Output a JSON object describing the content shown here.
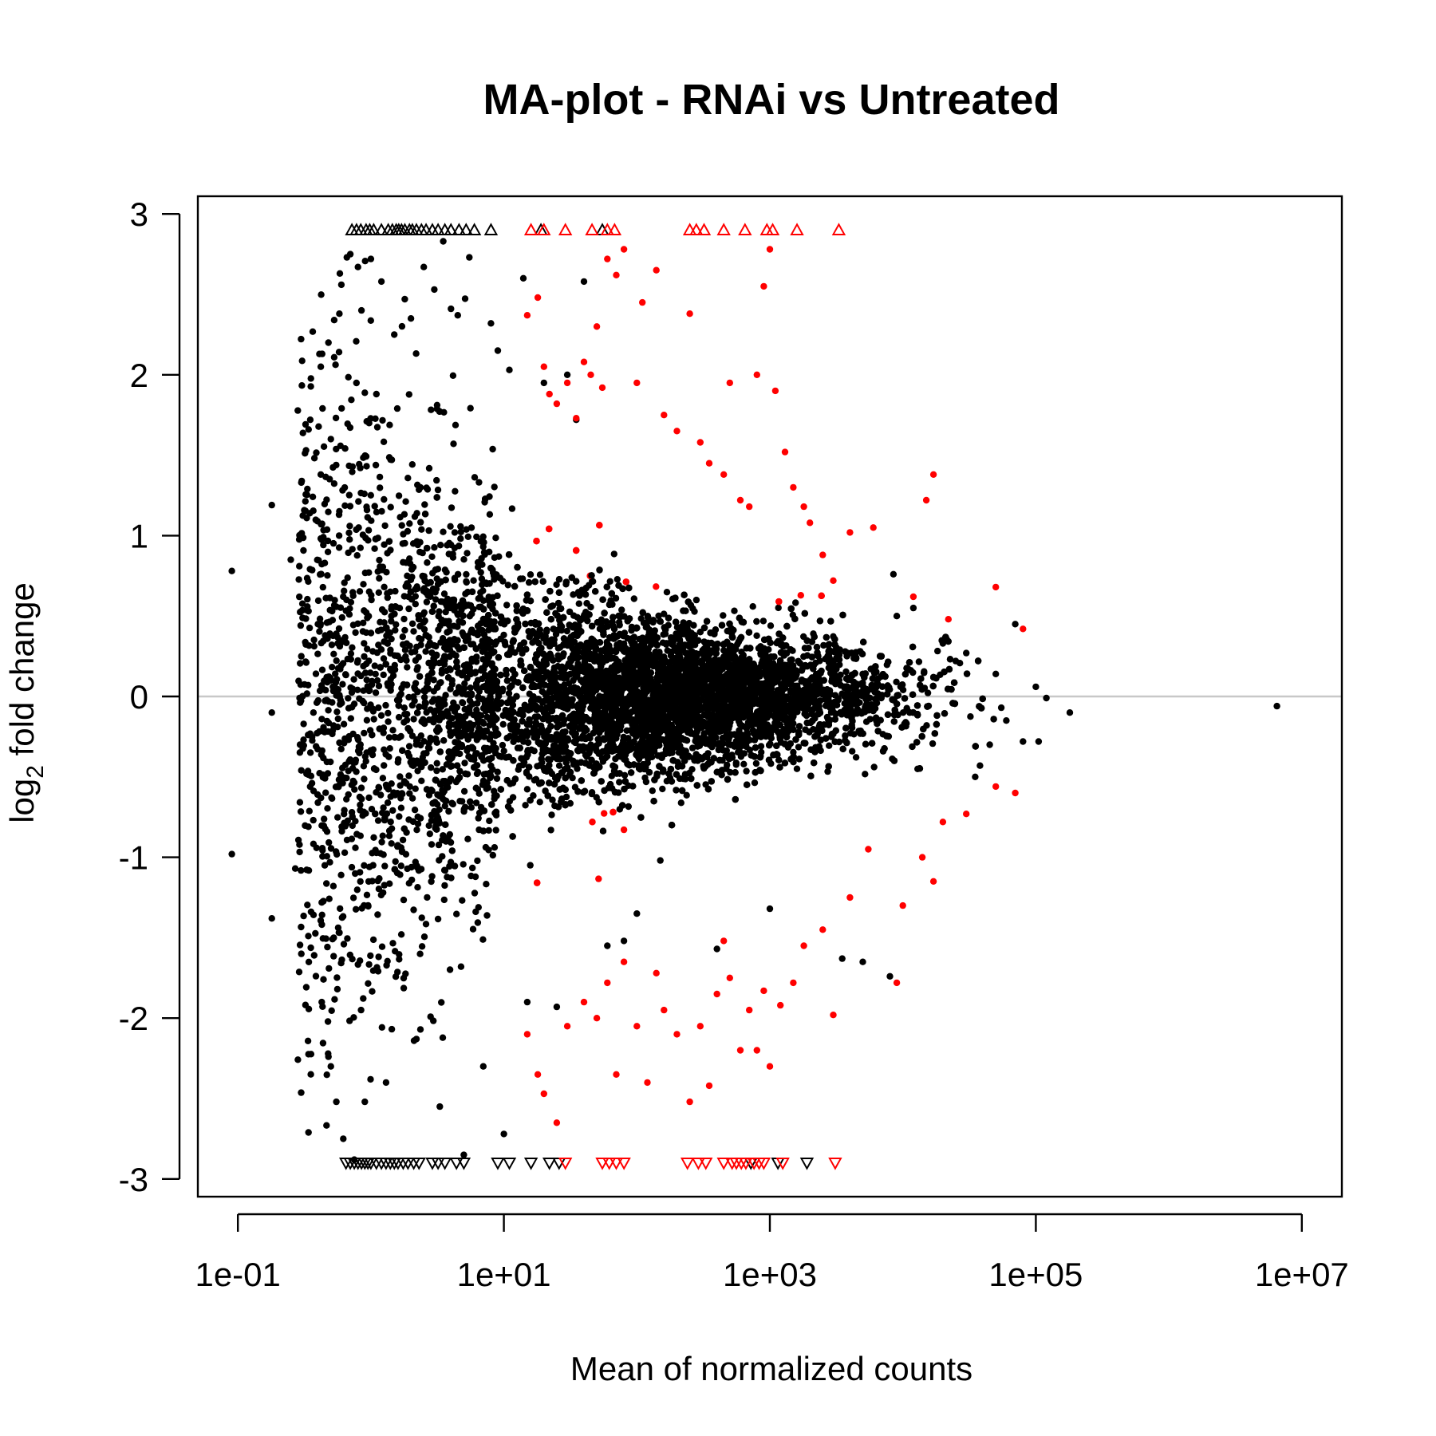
{
  "colors": {
    "significant": "#ff0000",
    "not_significant": "#000000",
    "zero_line": "#c8c8c8",
    "frame": "#000000",
    "background": "#ffffff"
  },
  "chart_data": {
    "type": "scatter",
    "title": "MA-plot - RNAi vs Untreated",
    "xlabel": "Mean of normalized counts",
    "ylabel_main": "log",
    "ylabel_sub": "2",
    "ylabel_rest": " fold change",
    "x_scale": "log10",
    "xlim": [
      0.05,
      20000000.0
    ],
    "ylim": [
      -3.11,
      3.11
    ],
    "clip_at": 2.9,
    "x_ticks": [
      {
        "value": 0.1,
        "label": "1e-01"
      },
      {
        "value": 10,
        "label": "1e+01"
      },
      {
        "value": 1000,
        "label": "1e+03"
      },
      {
        "value": 100000,
        "label": "1e+05"
      },
      {
        "value": 10000000,
        "label": "1e+07"
      }
    ],
    "y_ticks": [
      {
        "value": 3,
        "label": "3"
      },
      {
        "value": 2,
        "label": "2"
      },
      {
        "value": 1,
        "label": "1"
      },
      {
        "value": 0,
        "label": "0"
      },
      {
        "value": -1,
        "label": "-1"
      },
      {
        "value": -2,
        "label": "-2"
      },
      {
        "value": -3,
        "label": "-3"
      }
    ],
    "zero_line": 0,
    "grid": false,
    "legend": "none",
    "series": [
      {
        "color": "#000000",
        "points": [
          [
            0.09,
            0.78
          ],
          [
            0.09,
            -0.98
          ],
          [
            0.18,
            1.19
          ],
          [
            0.18,
            -0.1
          ],
          [
            0.18,
            -1.38
          ],
          [
            0.25,
            0.85
          ],
          [
            0.27,
            -1.07
          ],
          [
            0.3,
            0.25
          ],
          [
            0.3,
            1.33
          ],
          [
            0.3,
            -0.46
          ],
          [
            0.3,
            -1.6
          ],
          [
            0.34,
            1.66
          ],
          [
            0.35,
            1.72
          ],
          [
            0.37,
            -0.1
          ],
          [
            0.4,
            0.45
          ],
          [
            0.4,
            -0.66
          ],
          [
            0.42,
            2.05
          ],
          [
            0.42,
            1.38
          ],
          [
            0.43,
            2.13
          ],
          [
            0.45,
            -1.05
          ],
          [
            0.45,
            0.83
          ],
          [
            0.48,
            2.2
          ],
          [
            0.48,
            -2.24
          ],
          [
            0.5,
            -2.3
          ],
          [
            0.5,
            1.6
          ],
          [
            0.53,
            2.34
          ],
          [
            0.55,
            -2.52
          ],
          [
            0.56,
            -1.82
          ],
          [
            0.58,
            2.38
          ],
          [
            0.6,
            2.56
          ],
          [
            0.62,
            -2.75
          ],
          [
            0.66,
            2.73
          ],
          [
            0.7,
            2.75
          ],
          [
            0.72,
            -0.72
          ],
          [
            0.75,
            -2.88
          ],
          [
            0.8,
            2.67
          ],
          [
            0.85,
            2.4
          ],
          [
            0.9,
            -2.52
          ],
          [
            1.0,
            2.72
          ],
          [
            1.1,
            1.88
          ],
          [
            1.2,
            2.58
          ],
          [
            1.3,
            -2.4
          ],
          [
            1.5,
            2.25
          ],
          [
            1.8,
            2.47
          ],
          [
            2.0,
            2.35
          ],
          [
            2.2,
            -2.13
          ],
          [
            2.5,
            2.67
          ],
          [
            3.0,
            2.53
          ],
          [
            3.3,
            -2.55
          ],
          [
            3.5,
            2.83
          ],
          [
            4.0,
            2.41
          ],
          [
            4.5,
            2.37
          ],
          [
            5.0,
            -2.85
          ],
          [
            5.5,
            2.73
          ],
          [
            7.0,
            -2.3
          ],
          [
            8.0,
            2.32
          ],
          [
            9.0,
            2.15
          ],
          [
            10.0,
            -2.72
          ],
          [
            11.0,
            2.03
          ],
          [
            14.0,
            2.6
          ],
          [
            15.0,
            -1.9
          ],
          [
            20.0,
            1.95
          ],
          [
            25.0,
            -1.93
          ],
          [
            30.0,
            2.0
          ],
          [
            35.0,
            1.72
          ],
          [
            40.0,
            2.58
          ],
          [
            60.0,
            -1.55
          ],
          [
            80.0,
            -1.52
          ],
          [
            100.0,
            -1.35
          ],
          [
            150.0,
            -1.02
          ],
          [
            400.0,
            -1.57
          ],
          [
            1000.0,
            -1.32
          ],
          [
            3500.0,
            -1.63
          ],
          [
            5000.0,
            -1.65
          ],
          [
            8000.0,
            -1.74
          ],
          [
            8500.0,
            0.76
          ],
          [
            9000.0,
            0.5
          ],
          [
            12000.0,
            0.55
          ],
          [
            20000.0,
            0.33
          ],
          [
            25000.0,
            0.22
          ],
          [
            30000.0,
            0.27
          ],
          [
            35000.0,
            -0.5
          ],
          [
            38000.0,
            -0.43
          ],
          [
            45000.0,
            -0.3
          ],
          [
            50000.0,
            0.14
          ],
          [
            55000.0,
            -0.07
          ],
          [
            60000.0,
            -0.15
          ],
          [
            70000.0,
            0.45
          ],
          [
            80000.0,
            -0.28
          ],
          [
            100000.0,
            0.06
          ],
          [
            105000.0,
            -0.28
          ],
          [
            120000.0,
            -0.01
          ],
          [
            180000.0,
            -0.1
          ],
          [
            6500000.0,
            -0.06
          ]
        ]
      },
      {
        "color": "#ff0000",
        "points": [
          [
            15.0,
            2.37
          ],
          [
            18.0,
            2.48
          ],
          [
            20.0,
            2.05
          ],
          [
            22.0,
            1.88
          ],
          [
            25.0,
            1.82
          ],
          [
            30.0,
            1.95
          ],
          [
            35.0,
            1.73
          ],
          [
            40.0,
            2.08
          ],
          [
            45.0,
            2.0
          ],
          [
            50.0,
            2.3
          ],
          [
            55.0,
            1.92
          ],
          [
            60.0,
            2.72
          ],
          [
            70.0,
            2.62
          ],
          [
            80.0,
            2.78
          ],
          [
            100.0,
            1.95
          ],
          [
            110.0,
            2.45
          ],
          [
            140.0,
            2.65
          ],
          [
            160.0,
            1.75
          ],
          [
            200.0,
            1.65
          ],
          [
            250.0,
            2.38
          ],
          [
            300.0,
            1.58
          ],
          [
            350.0,
            1.45
          ],
          [
            450.0,
            1.38
          ],
          [
            500.0,
            1.95
          ],
          [
            600.0,
            1.22
          ],
          [
            700.0,
            1.18
          ],
          [
            800.0,
            2.0
          ],
          [
            900.0,
            2.55
          ],
          [
            1000.0,
            2.78
          ],
          [
            1100.0,
            1.9
          ],
          [
            1300.0,
            1.52
          ],
          [
            1500.0,
            1.3
          ],
          [
            1800.0,
            1.18
          ],
          [
            2000.0,
            1.08
          ],
          [
            2500.0,
            0.88
          ],
          [
            3000.0,
            0.72
          ],
          [
            4000.0,
            1.02
          ],
          [
            6000.0,
            1.05
          ],
          [
            12000.0,
            0.62
          ],
          [
            15000.0,
            1.22
          ],
          [
            17000.0,
            1.38
          ],
          [
            22000.0,
            0.48
          ],
          [
            50000.0,
            0.68
          ],
          [
            80000.0,
            0.42
          ],
          [
            15.0,
            -2.1
          ],
          [
            18.0,
            -2.35
          ],
          [
            20.0,
            -2.47
          ],
          [
            25.0,
            -2.65
          ],
          [
            30.0,
            -2.05
          ],
          [
            40.0,
            -1.9
          ],
          [
            50.0,
            -2.0
          ],
          [
            60.0,
            -1.78
          ],
          [
            70.0,
            -2.35
          ],
          [
            80.0,
            -1.65
          ],
          [
            100.0,
            -2.05
          ],
          [
            120.0,
            -2.4
          ],
          [
            140.0,
            -1.72
          ],
          [
            160.0,
            -1.95
          ],
          [
            200.0,
            -2.1
          ],
          [
            250.0,
            -2.52
          ],
          [
            300.0,
            -2.05
          ],
          [
            350.0,
            -2.42
          ],
          [
            400.0,
            -1.85
          ],
          [
            450.0,
            -1.52
          ],
          [
            500.0,
            -1.75
          ],
          [
            600.0,
            -2.2
          ],
          [
            700.0,
            -1.95
          ],
          [
            800.0,
            -2.2
          ],
          [
            900.0,
            -1.83
          ],
          [
            1000.0,
            -2.3
          ],
          [
            1200.0,
            -1.92
          ],
          [
            1500.0,
            -1.78
          ],
          [
            1800.0,
            -1.55
          ],
          [
            2500.0,
            -1.45
          ],
          [
            3000.0,
            -1.98
          ],
          [
            4000.0,
            -1.25
          ],
          [
            5500.0,
            -0.95
          ],
          [
            9000.0,
            -1.78
          ],
          [
            10000.0,
            -1.3
          ],
          [
            14000.0,
            -1.0
          ],
          [
            17000.0,
            -1.15
          ],
          [
            20000.0,
            -0.78
          ],
          [
            30000.0,
            -0.73
          ],
          [
            50000.0,
            -0.56
          ],
          [
            70000.0,
            -0.6
          ]
        ]
      }
    ],
    "dense_cloud": {
      "description_free": true,
      "x_log10_center": 2.2,
      "x_log10_spread": 0.85,
      "count": 9000,
      "mixed_significant_band": [
        1.2,
        3.6
      ]
    },
    "clipped_up": [
      {
        "color": "#000000",
        "x": [
          0.72,
          0.78,
          0.84,
          0.92,
          0.98,
          1.05,
          1.2,
          1.35,
          1.45,
          1.55,
          1.62,
          1.7,
          1.8,
          1.95,
          2.05,
          2.2,
          2.4,
          2.6,
          2.9,
          3.2,
          3.6,
          4.0,
          4.6,
          5.2,
          6.0,
          8.0,
          19.0,
          55.0
        ]
      },
      {
        "color": "#ff0000",
        "x": [
          16.0,
          20.0,
          29.0,
          46.0,
          60.0,
          68.0,
          250.0,
          280.0,
          320.0,
          450.0,
          650.0,
          950.0,
          1050.0,
          1600.0,
          3300.0
        ]
      }
    ],
    "clipped_down": [
      {
        "color": "#000000",
        "x": [
          0.65,
          0.7,
          0.75,
          0.8,
          0.85,
          0.9,
          0.95,
          1.0,
          1.1,
          1.2,
          1.3,
          1.4,
          1.5,
          1.6,
          1.75,
          1.9,
          2.1,
          2.3,
          2.9,
          3.2,
          3.6,
          4.4,
          5.0,
          9.0,
          11.0,
          16.0,
          22.0,
          26.0,
          720.0,
          1150.0,
          1900.0
        ]
      },
      {
        "color": "#ff0000",
        "x": [
          29.0,
          55.0,
          62.0,
          70.0,
          80.0,
          240.0,
          290.0,
          330.0,
          450.0,
          520.0,
          560.0,
          610.0,
          660.0,
          760.0,
          830.0,
          900.0,
          1250.0,
          3100.0
        ]
      }
    ]
  }
}
